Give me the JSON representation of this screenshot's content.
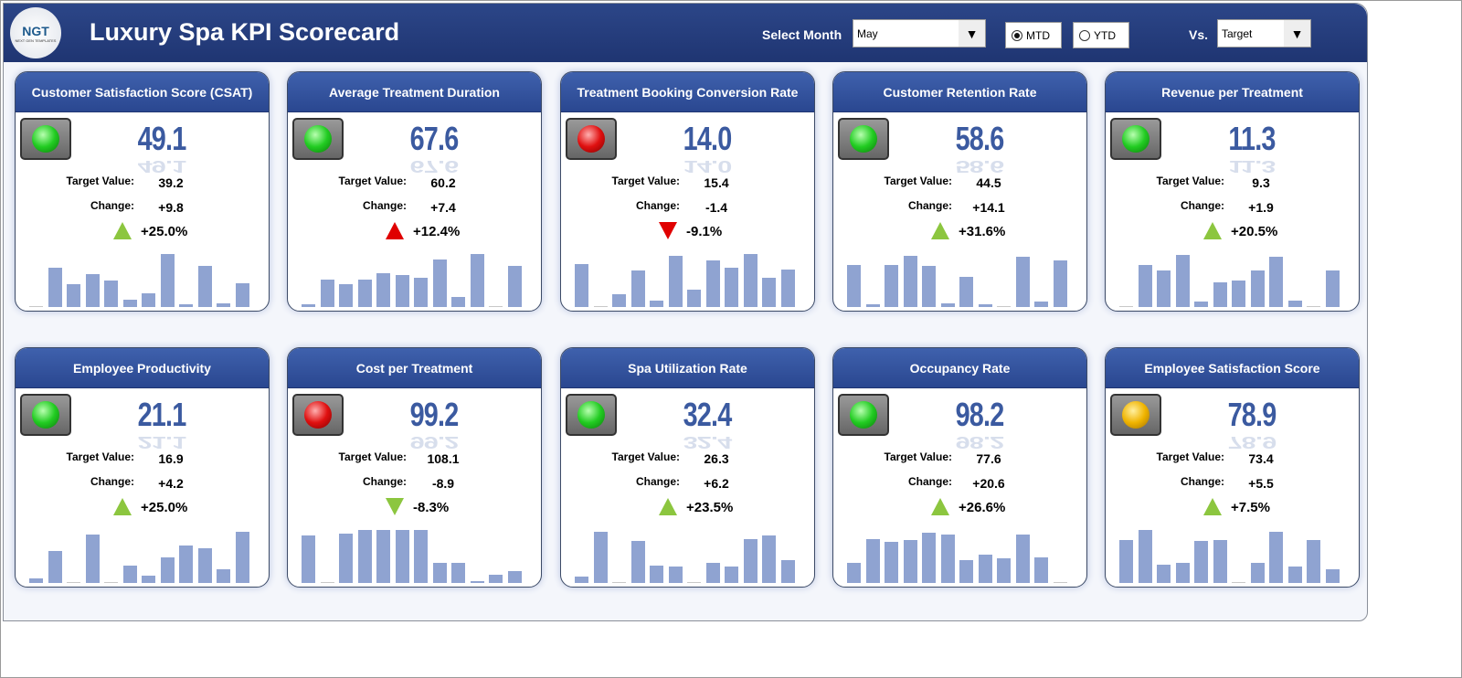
{
  "header": {
    "title": "Luxury Spa KPI Scorecard",
    "logo_text": "NGT",
    "logo_sub": "NEXT GEN TEMPLATES",
    "select_month_label": "Select Month",
    "month": "May",
    "mtd_label": "MTD",
    "ytd_label": "YTD",
    "selected_period": "MTD",
    "vs_label": "Vs.",
    "vs_value": "Target"
  },
  "labels": {
    "target": "Target Value:",
    "change": "Change:"
  },
  "colors": {
    "green": "#22cc22",
    "red": "#e01010",
    "yellow": "#f0b400",
    "up_good": "#8cc63f",
    "bad": "#e00000",
    "bar": "#8fa3d1"
  },
  "kpis": [
    {
      "title": "Customer Satisfaction Score (CSAT)",
      "value": "49.1",
      "target": "39.2",
      "change": "+9.8",
      "pct": "+25.0%",
      "light": "green",
      "arrow": "up",
      "arrow_color": "green",
      "bars": [
        1,
        43,
        25,
        36,
        29,
        8,
        15,
        58,
        3,
        45,
        4,
        26
      ]
    },
    {
      "title": "Average Treatment Duration",
      "value": "67.6",
      "target": "60.2",
      "change": "+7.4",
      "pct": "+12.4%",
      "light": "green",
      "arrow": "up",
      "arrow_color": "red",
      "bars": [
        3,
        30,
        25,
        30,
        37,
        35,
        32,
        52,
        11,
        58,
        1,
        45
      ]
    },
    {
      "title": "Treatment Booking Conversion Rate",
      "value": "14.0",
      "target": "15.4",
      "change": "-1.4",
      "pct": "-9.1%",
      "light": "red",
      "arrow": "down",
      "arrow_color": "red",
      "bars": [
        47,
        1,
        14,
        40,
        7,
        56,
        19,
        51,
        43,
        58,
        32,
        41
      ]
    },
    {
      "title": "Customer Retention Rate",
      "value": "58.6",
      "target": "44.5",
      "change": "+14.1",
      "pct": "+31.6%",
      "light": "green",
      "arrow": "up",
      "arrow_color": "green",
      "bars": [
        46,
        3,
        46,
        56,
        45,
        4,
        33,
        3,
        1,
        55,
        6,
        51
      ]
    },
    {
      "title": "Revenue per Treatment",
      "value": "11.3",
      "target": "9.3",
      "change": "+1.9",
      "pct": "+20.5%",
      "light": "green",
      "arrow": "up",
      "arrow_color": "green",
      "bars": [
        1,
        46,
        40,
        57,
        6,
        27,
        29,
        40,
        55,
        7,
        1,
        40
      ]
    },
    {
      "title": "Employee Productivity",
      "value": "21.1",
      "target": "16.9",
      "change": "+4.2",
      "pct": "+25.0%",
      "light": "green",
      "arrow": "up",
      "arrow_color": "green",
      "bars": [
        5,
        35,
        1,
        53,
        1,
        19,
        8,
        28,
        41,
        38,
        15,
        56
      ]
    },
    {
      "title": "Cost per Treatment",
      "value": "99.2",
      "target": "108.1",
      "change": "-8.9",
      "pct": "-8.3%",
      "light": "red",
      "arrow": "down",
      "arrow_color": "green",
      "bars": [
        52,
        1,
        54,
        58,
        58,
        58,
        58,
        22,
        22,
        2,
        9,
        13
      ]
    },
    {
      "title": "Spa Utilization Rate",
      "value": "32.4",
      "target": "26.3",
      "change": "+6.2",
      "pct": "+23.5%",
      "light": "green",
      "arrow": "up",
      "arrow_color": "green",
      "bars": [
        7,
        56,
        1,
        46,
        19,
        18,
        1,
        22,
        18,
        48,
        52,
        25
      ]
    },
    {
      "title": "Occupancy Rate",
      "value": "98.2",
      "target": "77.6",
      "change": "+20.6",
      "pct": "+26.6%",
      "light": "green",
      "arrow": "up",
      "arrow_color": "green",
      "bars": [
        22,
        48,
        45,
        47,
        55,
        53,
        25,
        31,
        27,
        53,
        28,
        1
      ]
    },
    {
      "title": "Employee Satisfaction Score",
      "value": "78.9",
      "target": "73.4",
      "change": "+5.5",
      "pct": "+7.5%",
      "light": "yellow",
      "arrow": "up",
      "arrow_color": "green",
      "bars": [
        47,
        58,
        20,
        22,
        46,
        47,
        1,
        22,
        56,
        18,
        47,
        15
      ]
    }
  ]
}
